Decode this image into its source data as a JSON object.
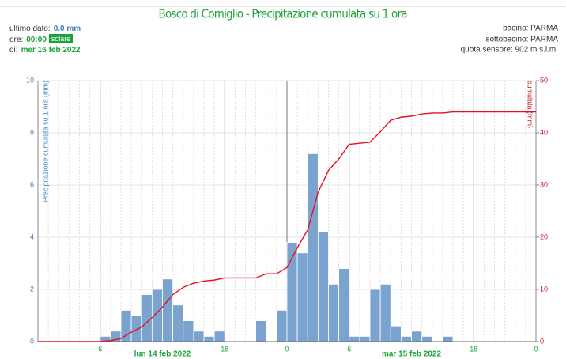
{
  "chart_data": {
    "type": "bar",
    "title": "Bosco di Corniglio - Precipitazione cumulata su 1 ora",
    "header": {
      "last_label": "ultimo dato:",
      "last_value": "0.0 mm",
      "time_label": "ore:",
      "time_value": "00:00",
      "time_badge": "solare",
      "date_label": "di:",
      "date_value": "mer 16 feb 2022",
      "basin": "bacino: PARMA",
      "subbasin": "sottobacino: PARMA",
      "altitude": "quota sensore: 902 m s.l.m."
    },
    "y_label": "Precipitazione cumulata su 1 ora (mm)",
    "y2_label": "cumulata (mm)",
    "xlim": [
      0,
      48
    ],
    "xticks": [
      {
        "value": 6,
        "label": "6"
      },
      {
        "value": 18,
        "label": "18"
      },
      {
        "value": 24,
        "label": "0"
      },
      {
        "value": 30,
        "label": "6"
      },
      {
        "value": 42,
        "label": "18"
      },
      {
        "value": 48,
        "label": "0"
      }
    ],
    "date_ticks": [
      {
        "value": 12,
        "label": "lun 14 feb 2022"
      },
      {
        "value": 36,
        "label": "mar 15 feb 2022"
      }
    ],
    "ylim": [
      0,
      10
    ],
    "yticks": [
      0,
      2,
      4,
      6,
      8,
      10
    ],
    "y2lim": [
      0,
      50
    ],
    "y2ticks": [
      0,
      10,
      20,
      30,
      40,
      50
    ],
    "grid": true,
    "series": [
      {
        "name": "Precipitazione",
        "color": "#7ba3cf",
        "x": [
          0,
          1,
          2,
          3,
          4,
          5,
          6,
          7,
          8,
          9,
          10,
          11,
          12,
          13,
          14,
          15,
          16,
          17,
          18,
          19,
          20,
          21,
          22,
          23,
          24,
          25,
          26,
          27,
          28,
          29,
          30,
          31,
          32,
          33,
          34,
          35,
          36,
          37,
          38,
          39,
          40,
          41,
          42,
          43,
          44,
          45,
          46,
          47
        ],
        "values": [
          0,
          0,
          0,
          0,
          0,
          0,
          0.2,
          0.4,
          1.2,
          1.0,
          1.8,
          2.0,
          2.4,
          1.4,
          0.8,
          0.4,
          0.2,
          0.4,
          0,
          0,
          0,
          0.8,
          0,
          1.2,
          3.8,
          3.4,
          7.2,
          4.2,
          2.2,
          2.8,
          0.2,
          0.2,
          2.0,
          2.2,
          0.6,
          0.2,
          0.4,
          0.2,
          0,
          0.2,
          0,
          0,
          0,
          0,
          0,
          0,
          0,
          0
        ]
      },
      {
        "name": "cumulata",
        "color": "#e8101c",
        "axis": "y2",
        "x": [
          0,
          6,
          7,
          8,
          9,
          10,
          11,
          12,
          13,
          14,
          15,
          16,
          17,
          18,
          19,
          20,
          21,
          22,
          23,
          24,
          25,
          26,
          27,
          28,
          29,
          30,
          31,
          32,
          33,
          34,
          35,
          36,
          37,
          38,
          39,
          40,
          41,
          42,
          43,
          44,
          45,
          46,
          47,
          48
        ],
        "values": [
          0,
          0,
          0.2,
          0.6,
          1.8,
          2.8,
          4.6,
          6.6,
          9.0,
          10.4,
          11.2,
          11.6,
          11.8,
          12.2,
          12.2,
          12.2,
          12.2,
          13.0,
          13.0,
          14.2,
          18.0,
          21.4,
          28.6,
          32.8,
          35.0,
          37.8,
          38.0,
          38.2,
          40.2,
          42.4,
          43.0,
          43.2,
          43.6,
          43.8,
          43.8,
          44.0,
          44.0,
          44.0,
          44.0,
          44.0,
          44.0,
          44.0,
          44.0,
          44.0
        ]
      }
    ]
  }
}
